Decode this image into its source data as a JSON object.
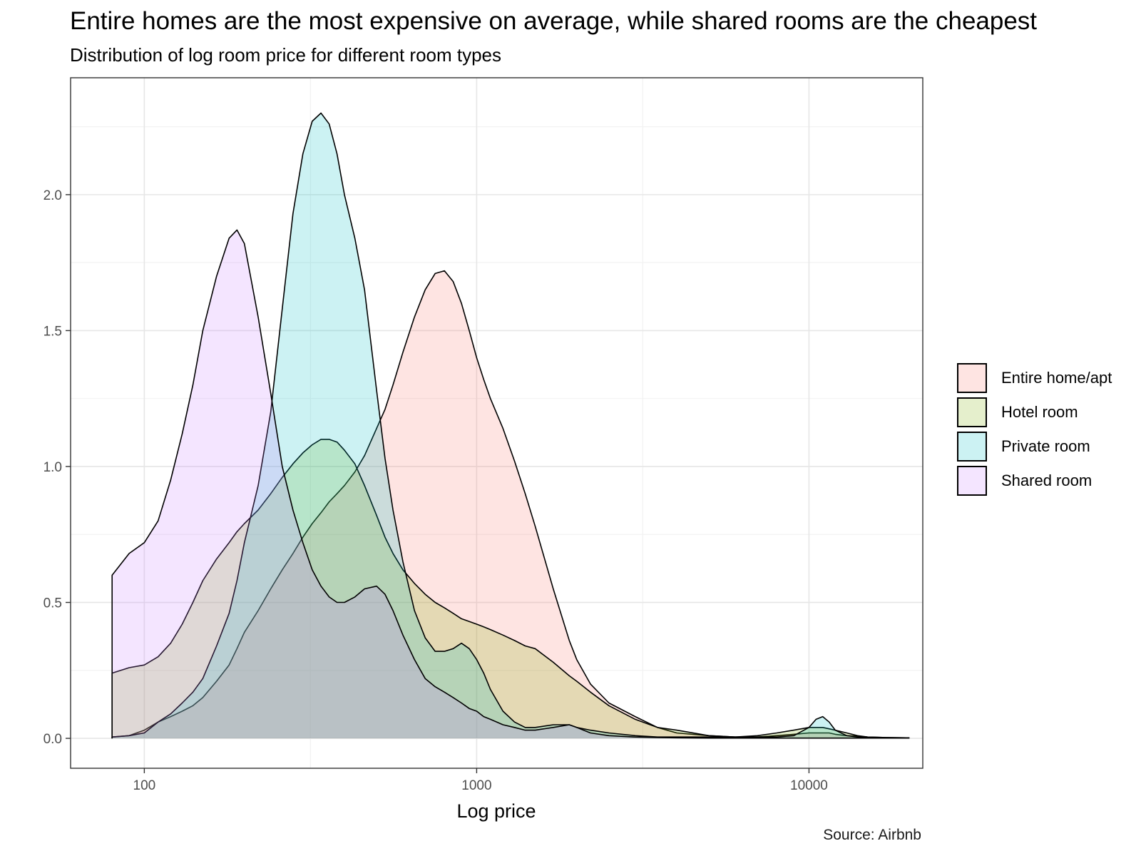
{
  "title": "Entire homes are the most expensive on average, while shared rooms are the cheapest",
  "subtitle": "Distribution of log room price for different room types",
  "caption": "Source: Airbnb",
  "chart_data": {
    "type": "area",
    "title": "Entire homes are the most expensive on average, while shared rooms are the cheapest",
    "subtitle": "Distribution of log room price for different room types",
    "xlabel": "Log price",
    "ylabel": "",
    "x_scale": "log10",
    "xlim": [
      60,
      22000
    ],
    "ylim": [
      -0.11,
      2.43
    ],
    "x_ticks": [
      100,
      1000,
      10000
    ],
    "x_tick_labels": [
      "100",
      "1000",
      "10000"
    ],
    "y_ticks": [
      0,
      0.5,
      1,
      1.5,
      2
    ],
    "y_tick_labels": [
      "0.0",
      "0.5",
      "1.0",
      "1.5",
      "2.0"
    ],
    "grid": true,
    "legend_position": "right",
    "x": [
      80,
      90,
      100,
      110,
      120,
      130,
      140,
      150,
      165,
      180,
      190,
      200,
      220,
      240,
      260,
      280,
      300,
      320,
      340,
      360,
      380,
      400,
      430,
      460,
      500,
      530,
      560,
      600,
      650,
      700,
      750,
      800,
      850,
      900,
      950,
      1000,
      1050,
      1100,
      1200,
      1300,
      1400,
      1500,
      1700,
      1900,
      2000,
      2200,
      2500,
      3000,
      3500,
      4000,
      5000,
      6000,
      7000,
      8000,
      9000,
      10000,
      10500,
      11000,
      11500,
      12000,
      13000,
      14000,
      15000,
      17000,
      20000
    ],
    "series": [
      {
        "name": "Entire home/apt",
        "color": "#F8766D",
        "values": [
          0.005,
          0.01,
          0.03,
          0.06,
          0.08,
          0.1,
          0.12,
          0.15,
          0.21,
          0.27,
          0.33,
          0.39,
          0.47,
          0.55,
          0.62,
          0.68,
          0.74,
          0.79,
          0.83,
          0.87,
          0.9,
          0.93,
          0.98,
          1.04,
          1.14,
          1.21,
          1.3,
          1.42,
          1.55,
          1.65,
          1.71,
          1.72,
          1.68,
          1.6,
          1.5,
          1.4,
          1.32,
          1.25,
          1.14,
          1.02,
          0.9,
          0.78,
          0.55,
          0.36,
          0.29,
          0.2,
          0.13,
          0.08,
          0.04,
          0.02,
          0.01,
          0.005,
          0.005,
          0.01,
          0.015,
          0.02,
          0.02,
          0.02,
          0.02,
          0.015,
          0.01,
          0.008,
          0.005,
          0.003,
          0.002
        ]
      },
      {
        "name": "Hotel room",
        "color": "#7CAE00",
        "values": [
          0.24,
          0.26,
          0.27,
          0.3,
          0.35,
          0.42,
          0.5,
          0.58,
          0.66,
          0.72,
          0.76,
          0.79,
          0.84,
          0.9,
          0.96,
          1.01,
          1.05,
          1.08,
          1.1,
          1.1,
          1.09,
          1.06,
          1.01,
          0.93,
          0.82,
          0.74,
          0.68,
          0.62,
          0.57,
          0.53,
          0.5,
          0.48,
          0.46,
          0.44,
          0.43,
          0.42,
          0.41,
          0.4,
          0.38,
          0.36,
          0.34,
          0.33,
          0.28,
          0.23,
          0.21,
          0.17,
          0.12,
          0.07,
          0.04,
          0.03,
          0.01,
          0.005,
          0.01,
          0.02,
          0.03,
          0.04,
          0.04,
          0.04,
          0.035,
          0.03,
          0.02,
          0.01,
          0.005,
          0.003,
          0.002
        ]
      },
      {
        "name": "Private room",
        "color": "#00BFC4",
        "values": [
          0.005,
          0.01,
          0.02,
          0.06,
          0.09,
          0.13,
          0.17,
          0.22,
          0.34,
          0.46,
          0.58,
          0.72,
          0.93,
          1.2,
          1.58,
          1.93,
          2.15,
          2.27,
          2.3,
          2.26,
          2.15,
          2.0,
          1.84,
          1.65,
          1.28,
          1.03,
          0.84,
          0.65,
          0.47,
          0.37,
          0.32,
          0.32,
          0.33,
          0.35,
          0.33,
          0.29,
          0.24,
          0.18,
          0.1,
          0.06,
          0.04,
          0.04,
          0.05,
          0.05,
          0.04,
          0.03,
          0.02,
          0.01,
          0.005,
          0.005,
          0.005,
          0.005,
          0.005,
          0.005,
          0.01,
          0.04,
          0.07,
          0.08,
          0.06,
          0.03,
          0.01,
          0.005,
          0.003,
          0.002,
          0.001
        ]
      },
      {
        "name": "Shared room",
        "color": "#C77CFF",
        "values": [
          0.6,
          0.68,
          0.72,
          0.8,
          0.95,
          1.12,
          1.3,
          1.5,
          1.7,
          1.84,
          1.87,
          1.82,
          1.55,
          1.27,
          1.0,
          0.84,
          0.72,
          0.62,
          0.56,
          0.52,
          0.5,
          0.5,
          0.52,
          0.55,
          0.56,
          0.53,
          0.47,
          0.38,
          0.29,
          0.22,
          0.19,
          0.17,
          0.15,
          0.13,
          0.11,
          0.1,
          0.08,
          0.07,
          0.05,
          0.04,
          0.03,
          0.03,
          0.04,
          0.05,
          0.04,
          0.02,
          0.01,
          0.005,
          0.003,
          0.002,
          0.001,
          0.001,
          0.001,
          0.001,
          0.001,
          0.001,
          0.001,
          0.001,
          0.001,
          0.001,
          0.001,
          0.001,
          0.001,
          0.001,
          0.001
        ]
      }
    ]
  }
}
